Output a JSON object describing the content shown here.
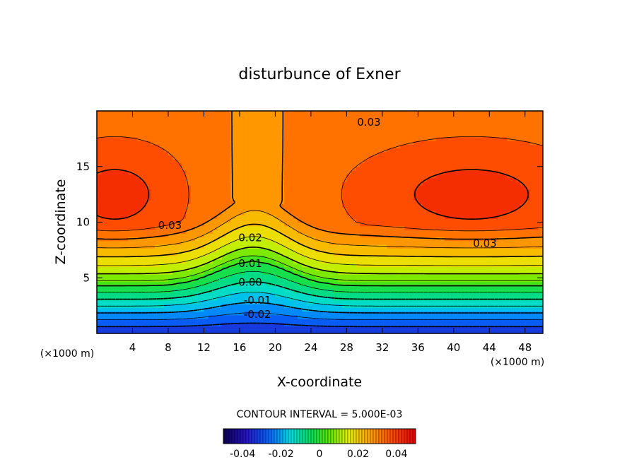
{
  "chart_data": {
    "type": "heatmap",
    "title": "disturbunce of Exner",
    "xlabel": "X-coordinate",
    "ylabel": "Z-coordinate",
    "x_unit": "(×1000 m)",
    "z_unit": "(×1000 m)",
    "xlim": [
      0,
      50
    ],
    "ylim": [
      0,
      20
    ],
    "x_ticks": [
      4,
      8,
      12,
      16,
      20,
      24,
      28,
      32,
      36,
      40,
      44,
      48
    ],
    "y_ticks": [
      5,
      10,
      15
    ],
    "contour_interval_text": "CONTOUR INTERVAL = 5.000E-03",
    "contour_interval": 0.005,
    "contour_labels": [
      {
        "text": "0.03",
        "x": 30.5,
        "z": 19.0
      },
      {
        "text": "0.03",
        "x": 8.2,
        "z": 9.7
      },
      {
        "text": "0.03",
        "x": 43.5,
        "z": 8.1
      },
      {
        "text": "0.02",
        "x": 17.2,
        "z": 8.6
      },
      {
        "text": "0.01",
        "x": 17.2,
        "z": 6.3
      },
      {
        "text": "0.00",
        "x": 17.2,
        "z": 4.6
      },
      {
        "text": "-0.01",
        "x": 18.0,
        "z": 3.0
      },
      {
        "text": "-0.02",
        "x": 18.0,
        "z": 1.7
      }
    ],
    "colorbar": {
      "min": -0.05,
      "max": 0.05,
      "ticks": [
        -0.04,
        -0.02,
        0,
        0.02,
        0.04
      ],
      "tick_labels": [
        "-0.04",
        "-0.02",
        "0",
        "0.02",
        "0.04"
      ],
      "colormap": "rainbow"
    },
    "field_model": {
      "description_values": {
        "surface_min": -0.035,
        "upper_max": 0.042,
        "zero_level_z": 4.3
      }
    }
  }
}
